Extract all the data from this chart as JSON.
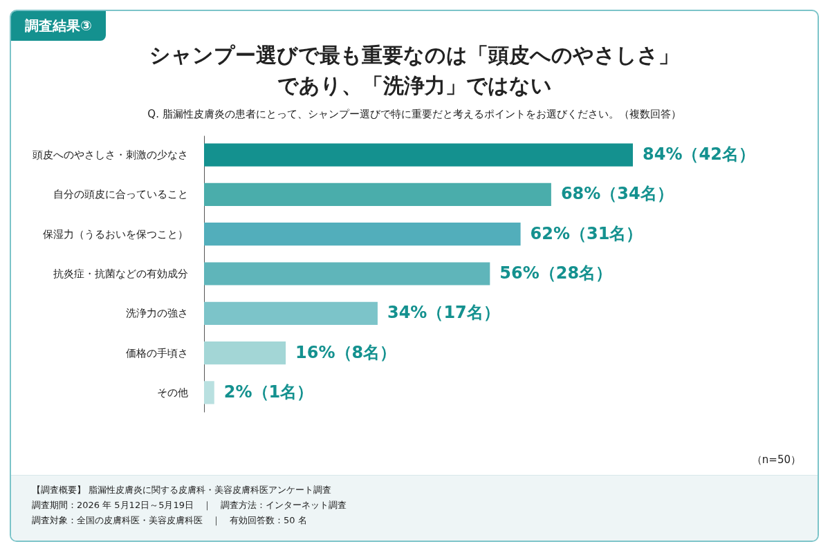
{
  "chart_data": {
    "type": "bar",
    "orientation": "horizontal",
    "title": "シャンプー選びで最も重要なのは「頭皮へのやさしさ」であり、「洗浄力」ではない",
    "subtitle": "Q. 脂漏性皮膚炎の患者にとって、シャンプー選びで特に重要だと考えるポイントをお選びください。（複数回答）",
    "categories": [
      "頭皮へのやさしさ・刺激の少なさ",
      "自分の頭皮に合っていること",
      "保湿力（うるおいを保つこと）",
      "抗炎症・抗菌などの有効成分",
      "洗浄力の強さ",
      "価格の手頃さ",
      "その他"
    ],
    "values": [
      84,
      68,
      62,
      56,
      34,
      16,
      2
    ],
    "value_labels": [
      "84%（42名）",
      "68%（34名）",
      "62%（31名）",
      "56%（28名）",
      "34%（17名）",
      "16%（8名）",
      "2%（1名）"
    ],
    "colors": [
      "#14918f",
      "#4aadab",
      "#52aebb",
      "#5fb5ba",
      "#7cc4c9",
      "#a3d6d6",
      "#b9e0e0"
    ],
    "annotations": [
      "調査結果③",
      "（n=50）",
      "【調査概要】 脂漏性皮膚炎に関する皮膚科・美容皮膚科医アンケート調査",
      "調査期間：2026 年 5月12日～5月19日　｜　調査方法：インターネット調査",
      "調査対象：全国の皮膚科医・美容皮膚科医　｜　有効回答数：50 名"
    ],
    "legend": false,
    "grid": false
  }
}
